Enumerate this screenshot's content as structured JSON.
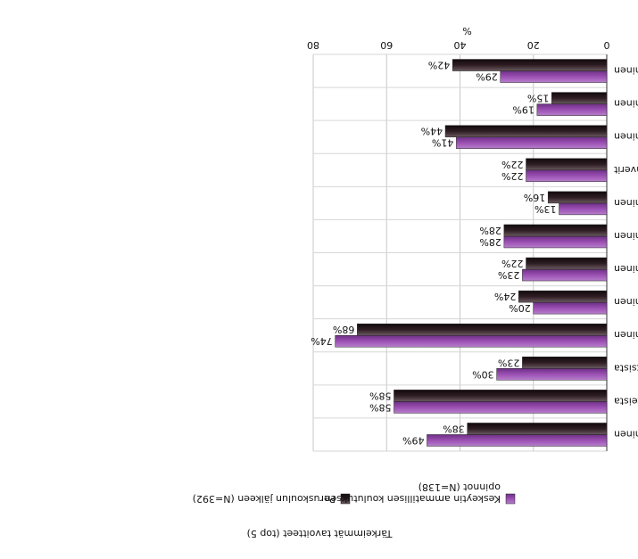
{
  "chart_data": {
    "type": "bar",
    "orientation": "horizontal",
    "rendered_upside_down": true,
    "title": "Tärkeimmät tavoitteet (top 5)",
    "xlabel": "%",
    "xlim": [
      0,
      80
    ],
    "xticks": [
      "0",
      "20",
      "40",
      "60",
      "80"
    ],
    "grid": true,
    "legend_position": "bottom",
    "categories": [
      "työelämän tuntemuksen lisääminen",
      "tietoa/kokemuksia eri ammateista",
      "tietoa/kokemuksia eri koulutusmahdollisuuksista",
      "kiinnostavan ammattialan löytäminen",
      "opiskelutaitojen kehittäminen",
      "itsetunnon ja -varmuuden lisääminen",
      "omien vahvuuksien tunnistaminen",
      "elämän ja arjen taitojen lisääminen",
      "ryhmään kuuluminen / kaverit",
      "yhteishaun lisäpisteiden saaminen",
      "ammatillisen perustutkinnon opintojen suorittaminen",
      "perusopetuksen arvosanojen korottaminen"
    ],
    "series": [
      {
        "name": "Keskeytin ammatillisen koulutuksen opinnot (N=138)",
        "color": "#9b50b3",
        "values": [
          49,
          58,
          30,
          74,
          20,
          23,
          28,
          13,
          22,
          41,
          19,
          29
        ],
        "labels": [
          "49%",
          "58%",
          "30%",
          "74%",
          "20%",
          "23%",
          "28%",
          "13%",
          "22%",
          "41%",
          "19%",
          "29%"
        ]
      },
      {
        "name": "Peruskoulun jälkeen (N=392)",
        "color": "#2e1e24",
        "values": [
          38,
          58,
          23,
          68,
          24,
          22,
          28,
          16,
          22,
          44,
          15,
          42
        ],
        "labels": [
          "38%",
          "58%",
          "23%",
          "68%",
          "24%",
          "22%",
          "28%",
          "16%",
          "22%",
          "44%",
          "15%",
          "42%"
        ]
      }
    ]
  }
}
